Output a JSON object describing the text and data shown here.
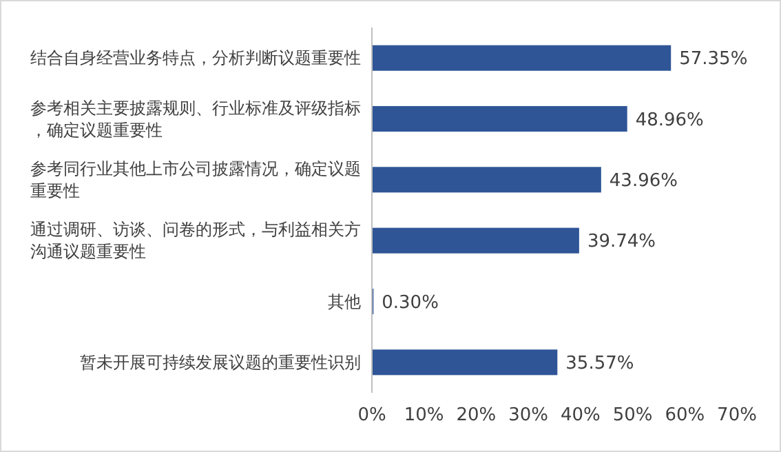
{
  "chart_data": {
    "type": "bar",
    "orientation": "horizontal",
    "categories": [
      "结合自身经营业务特点，分析判断议题重要性",
      "参考相关主要披露规则、行业标准及评级指标，确定议题重要性",
      "参考同行业其他上市公司披露情况，确定议题重要性",
      "通过调研、访谈、问卷的形式，与利益相关方沟通议题重要性",
      "其他",
      "暂未开展可持续发展议题的重要性识别"
    ],
    "values": [
      57.35,
      48.96,
      43.96,
      39.74,
      0.3,
      35.57
    ],
    "value_labels": [
      "57.35%",
      "48.96%",
      "43.96%",
      "39.74%",
      "0.30%",
      "35.57%"
    ],
    "color": "#2f5597",
    "xlim": [
      0,
      70
    ],
    "xticks": [
      {
        "value": 0,
        "label": "0%"
      },
      {
        "value": 10,
        "label": "10%"
      },
      {
        "value": 20,
        "label": "20%"
      },
      {
        "value": 30,
        "label": "30%"
      },
      {
        "value": 40,
        "label": "40%"
      },
      {
        "value": 50,
        "label": "50%"
      },
      {
        "value": 60,
        "label": "60%"
      },
      {
        "value": 70,
        "label": "70%"
      }
    ],
    "grid": false
  }
}
